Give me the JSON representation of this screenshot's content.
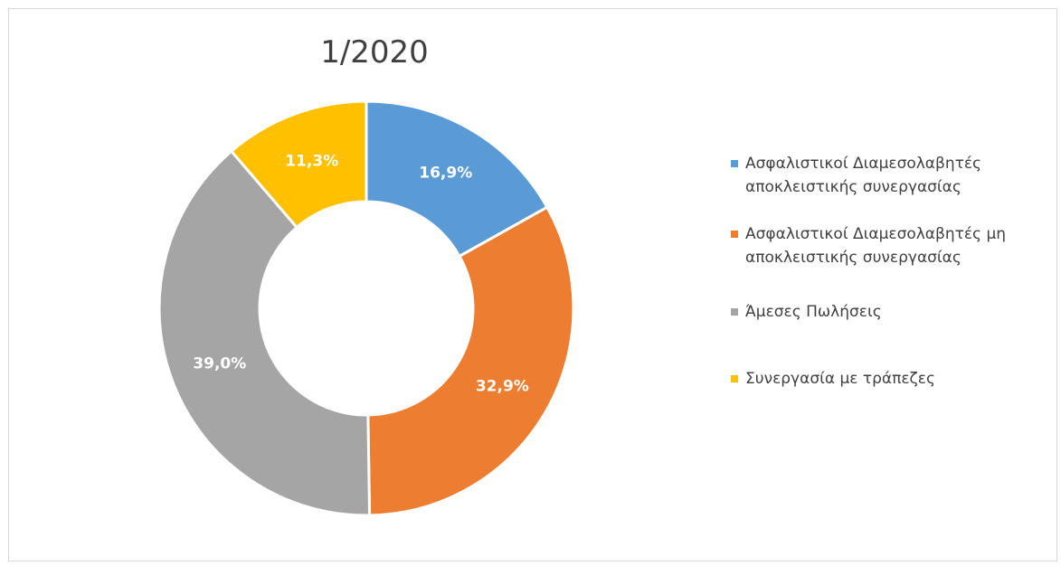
{
  "chart_data": {
    "type": "pie",
    "style": "donut",
    "title": "1/2020",
    "legend_position": "right",
    "slices": [
      {
        "name": "Ασφαλιστικοί Διαμεσολαβητές αποκλειστικής συνεργασίας",
        "value": 16.9,
        "label": "16,9%",
        "color": "#5B9BD5"
      },
      {
        "name": "Ασφαλιστικοί Διαμεσολαβητές  μη αποκλειστικής συνεργασίας",
        "value": 32.9,
        "label": "32,9%",
        "color": "#ED7D31"
      },
      {
        "name": "Άμεσες Πωλήσεις",
        "value": 39.0,
        "label": "39,0%",
        "color": "#A5A5A5"
      },
      {
        "name": "Συνεργασία με τράπεζες",
        "value": 11.3,
        "label": "11,3%",
        "color": "#FFC000"
      }
    ]
  }
}
